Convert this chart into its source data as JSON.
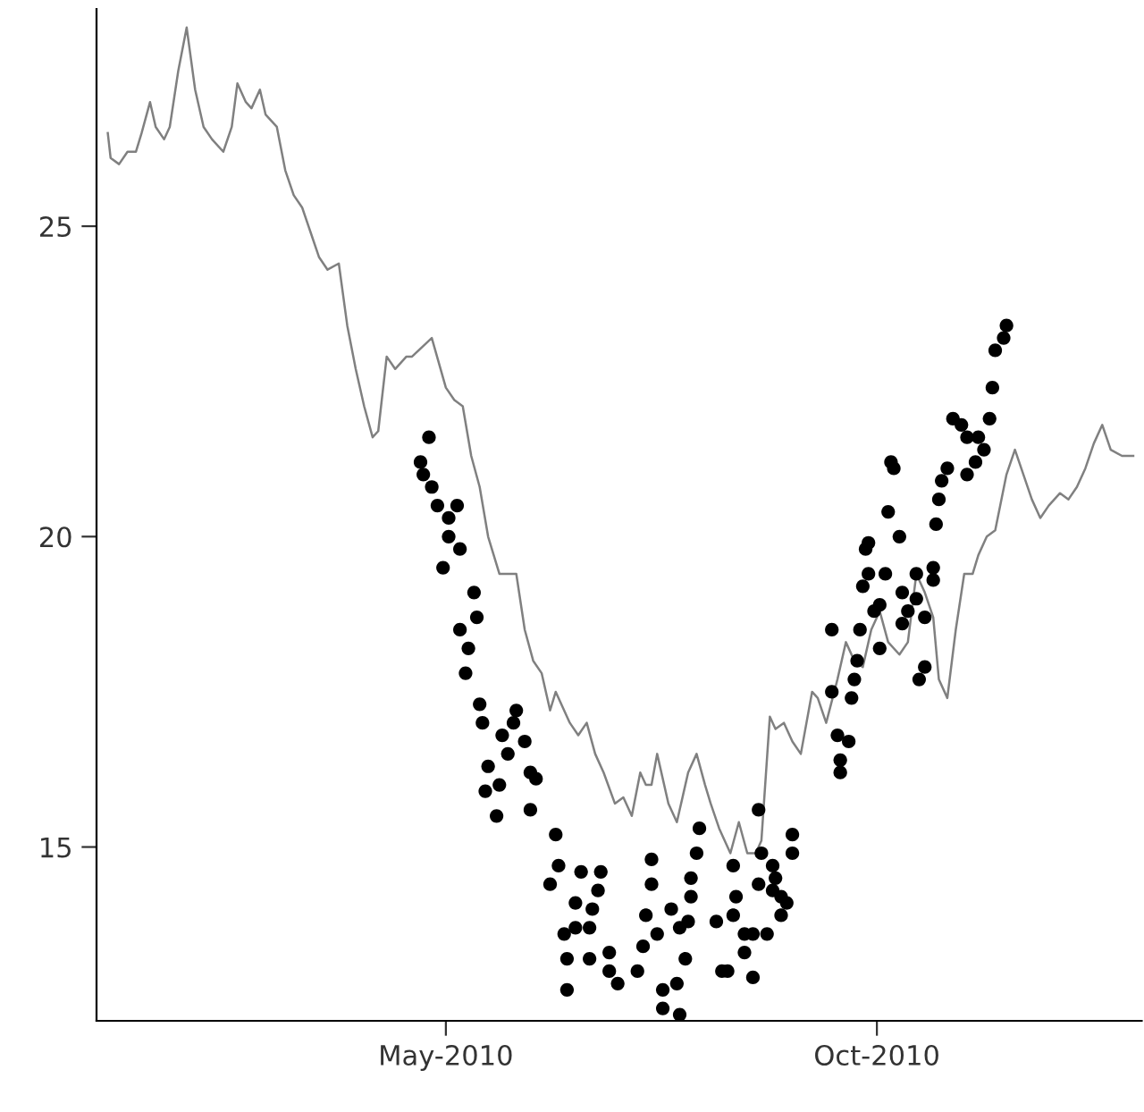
{
  "chart_data": {
    "type": "line",
    "xlim": [
      "2009-12-28",
      "2011-01-03"
    ],
    "xticks": [
      {
        "value": "2010-05-01",
        "label": "May-2010"
      },
      {
        "value": "2010-10-01",
        "label": "Oct-2010"
      }
    ],
    "ylim": [
      12.2,
      28.5
    ],
    "yticks": [
      15,
      20,
      25
    ],
    "grid": false,
    "legend": false,
    "series": [
      {
        "color": "#808080",
        "marker": "none",
        "line_style": "solid",
        "x": [
          "2010-01-01",
          "2010-01-02",
          "2010-01-05",
          "2010-01-08",
          "2010-01-11",
          "2010-01-13",
          "2010-01-16",
          "2010-01-18",
          "2010-01-21",
          "2010-01-23",
          "2010-01-26",
          "2010-01-29",
          "2010-02-01",
          "2010-02-04",
          "2010-02-07",
          "2010-02-11",
          "2010-02-14",
          "2010-02-16",
          "2010-02-19",
          "2010-02-21",
          "2010-02-24",
          "2010-02-26",
          "2010-03-02",
          "2010-03-05",
          "2010-03-08",
          "2010-03-11",
          "2010-03-14",
          "2010-03-17",
          "2010-03-20",
          "2010-03-24",
          "2010-03-27",
          "2010-03-30",
          "2010-04-02",
          "2010-04-05",
          "2010-04-07",
          "2010-04-10",
          "2010-04-13",
          "2010-04-17",
          "2010-04-19",
          "2010-04-26",
          "2010-05-01",
          "2010-05-04",
          "2010-05-07",
          "2010-05-10",
          "2010-05-13",
          "2010-05-16",
          "2010-05-20",
          "2010-05-23",
          "2010-05-26",
          "2010-05-29",
          "2010-06-01",
          "2010-06-04",
          "2010-06-07",
          "2010-06-09",
          "2010-06-14",
          "2010-06-17",
          "2010-06-20",
          "2010-06-23",
          "2010-06-26",
          "2010-06-30",
          "2010-07-03",
          "2010-07-06",
          "2010-07-09",
          "2010-07-11",
          "2010-07-13",
          "2010-07-15",
          "2010-07-19",
          "2010-07-22",
          "2010-07-26",
          "2010-07-29",
          "2010-08-01",
          "2010-08-03",
          "2010-08-06",
          "2010-08-10",
          "2010-08-13",
          "2010-08-16",
          "2010-08-19",
          "2010-08-21",
          "2010-08-24",
          "2010-08-26",
          "2010-08-29",
          "2010-09-01",
          "2010-09-04",
          "2010-09-08",
          "2010-09-10",
          "2010-09-13",
          "2010-09-17",
          "2010-09-20",
          "2010-09-23",
          "2010-09-26",
          "2010-09-29",
          "2010-10-02",
          "2010-10-05",
          "2010-10-09",
          "2010-10-12",
          "2010-10-15",
          "2010-10-18",
          "2010-10-21",
          "2010-10-23",
          "2010-10-26",
          "2010-10-29",
          "2010-11-01",
          "2010-11-04",
          "2010-11-06",
          "2010-11-09",
          "2010-11-12",
          "2010-11-16",
          "2010-11-19",
          "2010-11-22",
          "2010-11-25",
          "2010-11-28",
          "2010-12-01",
          "2010-12-05",
          "2010-12-08",
          "2010-12-11",
          "2010-12-14",
          "2010-12-17",
          "2010-12-20",
          "2010-12-23",
          "2010-12-27",
          "2010-12-31"
        ],
        "values": [
          26.5,
          26.1,
          26.0,
          26.2,
          26.2,
          26.5,
          27.0,
          26.6,
          26.4,
          26.6,
          27.5,
          28.2,
          27.2,
          26.6,
          26.4,
          26.2,
          26.6,
          27.3,
          27.0,
          26.9,
          27.2,
          26.8,
          26.6,
          25.9,
          25.5,
          25.3,
          24.9,
          24.5,
          24.3,
          24.4,
          23.4,
          22.7,
          22.1,
          21.6,
          21.7,
          22.9,
          22.7,
          22.9,
          22.9,
          23.2,
          22.4,
          22.2,
          22.1,
          21.3,
          20.8,
          20.0,
          19.4,
          19.4,
          19.4,
          18.5,
          18.0,
          17.8,
          17.2,
          17.5,
          17.0,
          16.8,
          17.0,
          16.5,
          16.2,
          15.7,
          15.8,
          15.5,
          16.2,
          16.0,
          16.0,
          16.5,
          15.7,
          15.4,
          16.2,
          16.5,
          16.0,
          15.7,
          15.3,
          14.9,
          15.4,
          14.9,
          14.9,
          15.1,
          17.1,
          16.9,
          17.0,
          16.7,
          16.5,
          17.5,
          17.4,
          17.0,
          17.7,
          18.3,
          18.0,
          17.9,
          18.5,
          18.8,
          18.3,
          18.1,
          18.3,
          19.4,
          19.1,
          18.7,
          17.7,
          17.4,
          18.5,
          19.4,
          19.4,
          19.7,
          20.0,
          20.1,
          21.0,
          21.4,
          21.0,
          20.6,
          20.3,
          20.5,
          20.7,
          20.6,
          20.8,
          21.1,
          21.5,
          21.8,
          21.4,
          21.3,
          21.3
        ]
      },
      {
        "type": "scatter",
        "color": "#000000",
        "marker": "circle",
        "x": [
          "2010-04-25",
          "2010-04-22",
          "2010-04-23",
          "2010-04-26",
          "2010-04-28",
          "2010-05-05",
          "2010-05-02",
          "2010-05-02",
          "2010-05-06",
          "2010-04-30",
          "2010-05-11",
          "2010-05-12",
          "2010-05-06",
          "2010-05-09",
          "2010-05-08",
          "2010-05-13",
          "2010-05-14",
          "2010-05-26",
          "2010-05-25",
          "2010-05-21",
          "2010-05-29",
          "2010-05-23",
          "2010-05-16",
          "2010-05-31",
          "2010-06-02",
          "2010-05-15",
          "2010-05-20",
          "2010-05-19",
          "2010-05-31",
          "2010-06-09",
          "2010-06-10",
          "2010-06-07",
          "2010-06-18",
          "2010-06-25",
          "2010-06-24",
          "2010-06-16",
          "2010-06-22",
          "2010-06-16",
          "2010-06-12",
          "2010-06-21",
          "2010-06-13",
          "2010-06-21",
          "2010-06-28",
          "2010-06-28",
          "2010-07-01",
          "2010-06-13",
          "2010-07-08",
          "2010-07-10",
          "2010-07-11",
          "2010-07-13",
          "2010-07-13",
          "2010-07-15",
          "2010-07-20",
          "2010-07-23",
          "2010-07-25",
          "2010-07-17",
          "2010-07-22",
          "2010-07-17",
          "2010-07-23",
          "2010-07-26",
          "2010-07-27",
          "2010-07-27",
          "2010-07-29",
          "2010-07-30",
          "2010-08-05",
          "2010-08-07",
          "2010-08-09",
          "2010-08-11",
          "2010-08-12",
          "2010-08-11",
          "2010-08-15",
          "2010-08-15",
          "2010-08-18",
          "2010-08-18",
          "2010-08-20",
          "2010-08-21",
          "2010-08-23",
          "2010-08-20",
          "2010-08-25",
          "2010-08-26",
          "2010-08-25",
          "2010-08-28",
          "2010-08-30",
          "2010-08-28",
          "2010-09-01",
          "2010-09-01",
          "2010-11-16",
          "2010-11-15",
          "2010-11-12",
          "2010-11-11",
          "2010-11-10",
          "2010-10-28",
          "2010-10-31",
          "2010-11-02",
          "2010-11-06",
          "2010-11-08",
          "2010-11-05",
          "2010-11-02",
          "2010-10-26",
          "2010-10-24",
          "2010-10-23",
          "2010-10-06",
          "2010-10-07",
          "2010-10-05",
          "2010-10-09",
          "2010-10-22",
          "2010-09-28",
          "2010-09-27",
          "2010-09-28",
          "2010-10-04",
          "2010-09-26",
          "2010-10-15",
          "2010-10-21",
          "2010-10-21",
          "2010-10-10",
          "2010-10-15",
          "2010-10-02",
          "2010-09-30",
          "2010-10-12",
          "2010-10-18",
          "2010-10-10",
          "2010-09-25",
          "2010-09-15",
          "2010-10-02",
          "2010-09-24",
          "2010-09-23",
          "2010-10-18",
          "2010-10-16",
          "2010-09-15",
          "2010-09-22",
          "2010-09-17",
          "2010-09-21",
          "2010-09-18",
          "2010-09-18"
        ],
        "values": [
          21.6,
          21.2,
          21.0,
          20.8,
          20.5,
          20.5,
          20.3,
          20.0,
          19.8,
          19.5,
          19.1,
          18.7,
          18.5,
          18.2,
          17.8,
          17.3,
          17.0,
          17.2,
          17.0,
          16.8,
          16.7,
          16.5,
          16.3,
          16.2,
          16.1,
          15.9,
          16.0,
          15.5,
          15.6,
          15.2,
          14.7,
          14.4,
          14.6,
          14.6,
          14.3,
          14.1,
          14.0,
          13.7,
          13.6,
          13.7,
          13.2,
          13.2,
          13.3,
          13.0,
          12.8,
          12.7,
          13.0,
          13.4,
          13.9,
          14.4,
          14.8,
          13.6,
          14.0,
          13.7,
          13.2,
          12.7,
          12.8,
          12.4,
          12.3,
          13.8,
          14.2,
          14.5,
          14.9,
          15.3,
          13.8,
          13.0,
          13.0,
          13.9,
          14.2,
          14.7,
          13.6,
          13.3,
          12.9,
          13.6,
          15.6,
          14.9,
          13.6,
          14.4,
          14.7,
          14.5,
          14.3,
          14.2,
          14.1,
          13.9,
          14.9,
          15.2,
          23.4,
          23.2,
          23.0,
          22.4,
          21.9,
          21.9,
          21.8,
          21.6,
          21.6,
          21.4,
          21.2,
          21.0,
          21.1,
          20.9,
          20.6,
          21.2,
          21.1,
          20.4,
          20.0,
          20.2,
          19.9,
          19.8,
          19.4,
          19.4,
          19.2,
          19.4,
          19.5,
          19.3,
          19.1,
          19.0,
          18.9,
          18.8,
          18.8,
          18.7,
          18.6,
          18.5,
          18.5,
          18.2,
          18.0,
          17.7,
          17.9,
          17.7,
          17.5,
          17.4,
          16.8,
          16.7,
          16.4,
          16.2
        ]
      }
    ]
  }
}
